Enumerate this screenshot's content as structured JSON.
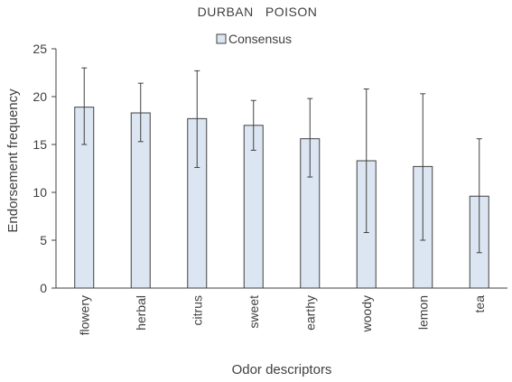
{
  "chart_data": {
    "type": "bar",
    "title": "DURBAN   POISON",
    "xlabel": "Odor descriptors",
    "ylabel": "Endorsement frequency",
    "ylim": [
      0,
      25
    ],
    "yticks": [
      0,
      5,
      10,
      15,
      20,
      25
    ],
    "categories": [
      "flowery",
      "herbal",
      "citrus",
      "sweet",
      "earthy",
      "woody",
      "lemon",
      "tea"
    ],
    "series": [
      {
        "name": "Consensus",
        "values": [
          18.9,
          18.3,
          17.7,
          17.0,
          15.6,
          13.3,
          12.7,
          9.6
        ],
        "error_upper": [
          23.0,
          21.4,
          22.7,
          19.6,
          19.8,
          20.8,
          20.3,
          15.6
        ],
        "error_lower": [
          15.0,
          15.3,
          12.6,
          14.4,
          11.6,
          5.8,
          5.0,
          3.7
        ]
      }
    ],
    "legend_position": "top-center",
    "grid": false,
    "colors": {
      "bar_fill": "#dce6f2",
      "bar_stroke": "#404040",
      "axis": "#404040",
      "text": "#404040"
    }
  }
}
